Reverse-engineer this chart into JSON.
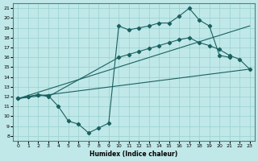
{
  "xlabel": "Humidex (Indice chaleur)",
  "bg_color": "#c0e8e8",
  "grid_color": "#98d0d0",
  "line_color": "#1a6060",
  "xlim": [
    -0.5,
    23.5
  ],
  "ylim": [
    7.5,
    21.5
  ],
  "xticks": [
    0,
    1,
    2,
    3,
    4,
    5,
    6,
    7,
    8,
    9,
    10,
    11,
    12,
    13,
    14,
    15,
    16,
    17,
    18,
    19,
    20,
    21,
    22,
    23
  ],
  "yticks": [
    8,
    9,
    10,
    11,
    12,
    13,
    14,
    15,
    16,
    17,
    18,
    19,
    20,
    21
  ],
  "line1_x": [
    0,
    1,
    2,
    3,
    4,
    5,
    6,
    7,
    8,
    9,
    10,
    11,
    12,
    13,
    14,
    15,
    16,
    17,
    18,
    19,
    20,
    21
  ],
  "line1_y": [
    11.8,
    12.0,
    12.2,
    12.1,
    11.0,
    9.5,
    9.2,
    8.3,
    8.8,
    9.3,
    19.2,
    18.8,
    19.0,
    19.2,
    19.5,
    19.5,
    20.2,
    21.0,
    19.8,
    19.2,
    16.2,
    16.0
  ],
  "line2_x": [
    0,
    1,
    2,
    3,
    10,
    11,
    12,
    13,
    14,
    15,
    16,
    17,
    18,
    19,
    20,
    21,
    22,
    23
  ],
  "line2_y": [
    11.8,
    12.0,
    12.2,
    12.0,
    16.0,
    16.3,
    16.6,
    16.9,
    17.2,
    17.5,
    17.8,
    18.0,
    17.5,
    17.2,
    16.8,
    16.2,
    15.8,
    14.8
  ],
  "line3_x": [
    0,
    23
  ],
  "line3_y": [
    11.8,
    19.2
  ],
  "line4_x": [
    0,
    23
  ],
  "line4_y": [
    11.8,
    14.8
  ]
}
